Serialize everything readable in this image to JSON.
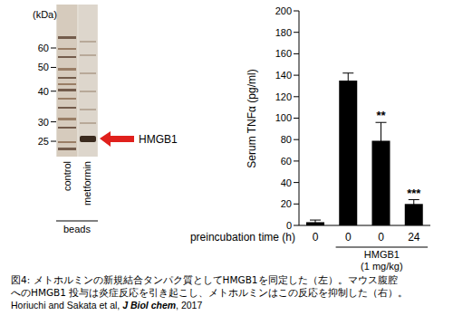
{
  "chart_data": {
    "type": "bar",
    "y_label": "Serum TNFα (pg/ml)",
    "x_label": "preincubation time (h)",
    "categories": [
      "0",
      "0",
      "0",
      "24"
    ],
    "values": [
      3,
      135,
      79,
      20
    ],
    "errors": [
      2,
      7,
      17,
      4
    ],
    "annotations": [
      null,
      null,
      "**",
      "***"
    ],
    "color": "#000000",
    "ylim": [
      0,
      200
    ],
    "yticks": [
      0,
      20,
      40,
      60,
      80,
      100,
      120,
      140,
      160,
      180,
      200
    ],
    "group": {
      "label": "HMGB1",
      "dose": "(1 mg/kg)",
      "members": [
        1,
        2,
        3
      ]
    }
  },
  "gel": {
    "unit": "(kDa)",
    "markers": [
      60,
      50,
      40,
      30,
      25
    ],
    "lanes": [
      "control",
      "metformin"
    ],
    "lane_group": "beads",
    "band_label": "HMGB1"
  },
  "caption": {
    "lines": [
      "図4: メトホルミンの新規結合タンパク質としてHMGB1を同定した（左）。マウス腹腔",
      "へのHMGB1 投与は炎症反応を引き起こし、メトホルミンはこの反応を抑制した（右）。"
    ],
    "citation": "Horiuchi and Sakata et al, ",
    "journal": "J Biol chem",
    "year": ", 2017"
  }
}
